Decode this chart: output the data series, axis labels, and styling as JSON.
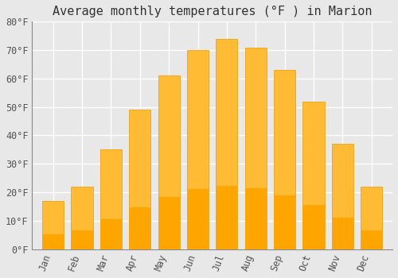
{
  "months": [
    "Jan",
    "Feb",
    "Mar",
    "Apr",
    "May",
    "Jun",
    "Jul",
    "Aug",
    "Sep",
    "Oct",
    "Nov",
    "Dec"
  ],
  "values": [
    17,
    22,
    35,
    49,
    61,
    70,
    74,
    71,
    63,
    52,
    37,
    22
  ],
  "bar_color_top": "#FFBB33",
  "bar_color_bottom": "#FFA500",
  "bar_edge_color": "#E89B00",
  "title": "Average monthly temperatures (°F ) in Marion",
  "ylim": [
    0,
    80
  ],
  "yticks": [
    0,
    10,
    20,
    30,
    40,
    50,
    60,
    70,
    80
  ],
  "ytick_labels": [
    "0°F",
    "10°F",
    "20°F",
    "30°F",
    "40°F",
    "50°F",
    "60°F",
    "70°F",
    "80°F"
  ],
  "background_color": "#e8e8e8",
  "plot_bg_color": "#e8e8e8",
  "grid_color": "#ffffff",
  "title_fontsize": 11,
  "tick_fontsize": 8.5,
  "font_family": "monospace",
  "bar_width": 0.75
}
